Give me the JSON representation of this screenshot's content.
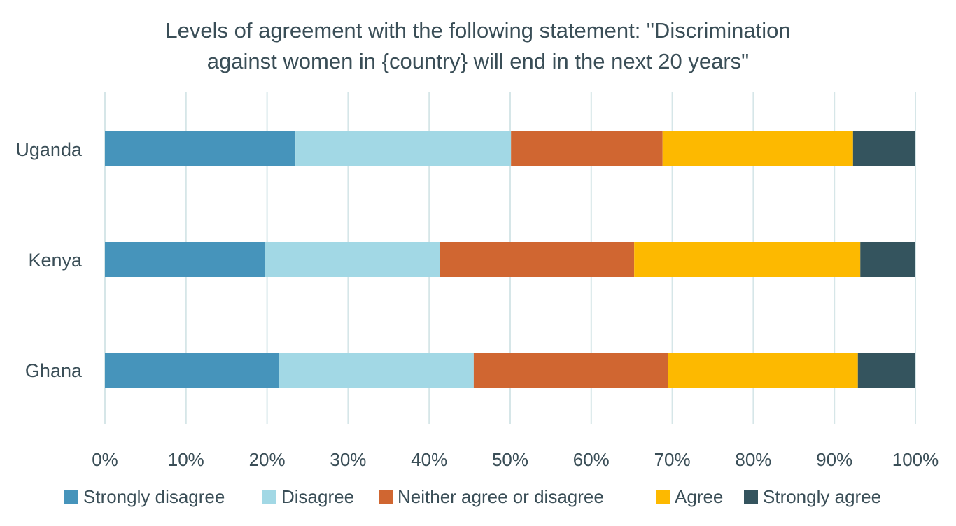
{
  "chart_data": {
    "type": "bar",
    "orientation": "horizontal",
    "stacked": true,
    "title_lines": [
      "Levels of agreement with the following statement: \"Discrimination",
      "against women in {country} will end in the next 20 years\""
    ],
    "categories": [
      "Uganda",
      "Kenya",
      "Ghana"
    ],
    "series": [
      {
        "name": "Strongly disagree",
        "color": "#4694bb",
        "values": [
          23.5,
          19.7,
          21.5
        ]
      },
      {
        "name": "Disagree",
        "color": "#a2d8e5",
        "values": [
          26.6,
          21.6,
          24.0
        ]
      },
      {
        "name": "Neither agree or disagree",
        "color": "#d06631",
        "values": [
          18.7,
          24.0,
          24.0
        ]
      },
      {
        "name": "Agree",
        "color": "#fdb900",
        "values": [
          23.5,
          27.9,
          23.4
        ]
      },
      {
        "name": "Strongly agree",
        "color": "#34545e",
        "values": [
          7.7,
          6.8,
          7.1
        ]
      }
    ],
    "xlim": [
      0,
      100
    ],
    "xticks": [
      "0%",
      "10%",
      "20%",
      "30%",
      "40%",
      "50%",
      "60%",
      "70%",
      "80%",
      "90%",
      "100%"
    ],
    "grid": "vertical",
    "grid_color": "#d6e6e8",
    "legend_position": "bottom"
  }
}
